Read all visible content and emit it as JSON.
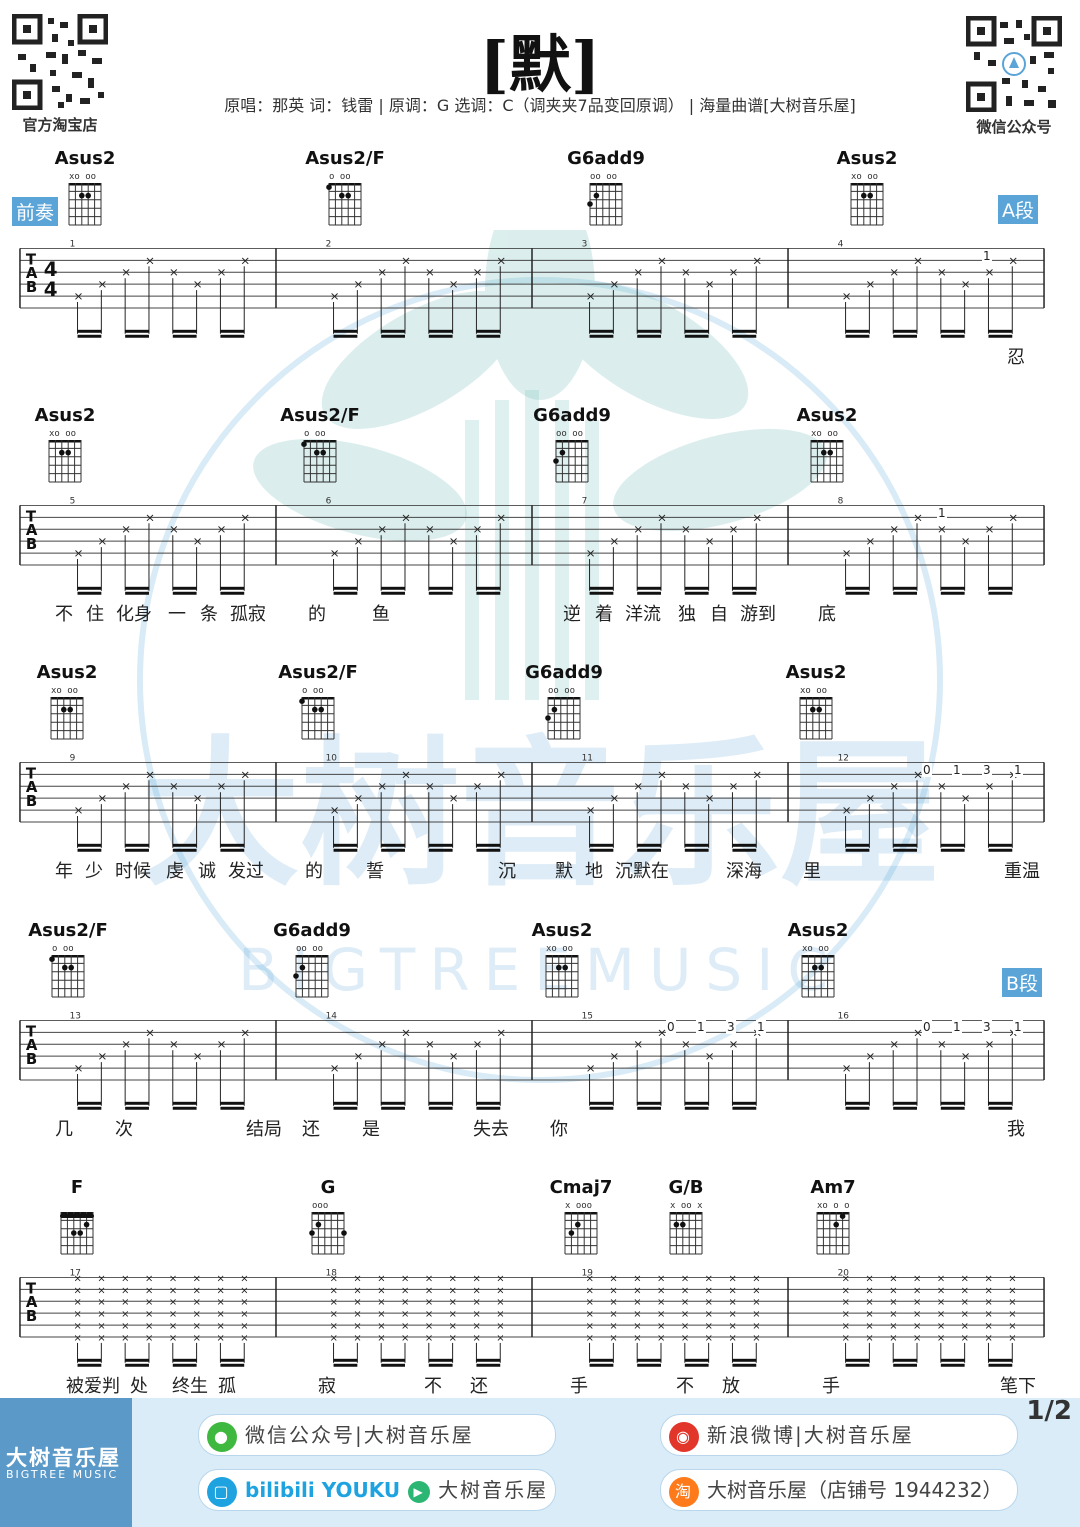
{
  "header": {
    "title": "[默]",
    "subtitle": "原唱：那英 词：钱雷 | 原调：G 选调：C（调夹夹7品变回原调） | 海量曲谱[大树音乐屋]",
    "qr_left_caption": "官方淘宝店",
    "qr_right_caption": "微信公众号"
  },
  "watermark": {
    "text_cn": "大树音乐屋",
    "text_en": "BIGTREEMUSIC"
  },
  "sections": {
    "intro": "前奏",
    "a": "A段",
    "b": "B段"
  },
  "time_signature": "4/4",
  "rows": [
    {
      "chords": [
        {
          "name": "Asus2",
          "marks": "xo  oo"
        },
        {
          "name": "Asus2/F",
          "marks": "  o oo"
        },
        {
          "name": "G6add9",
          "marks": "  oo oo"
        },
        {
          "name": "Asus2",
          "marks": "xo  oo"
        }
      ],
      "measures": [
        "1",
        "2",
        "3",
        "4"
      ],
      "lyrics": [
        "忍"
      ]
    },
    {
      "chords": [
        {
          "name": "Asus2",
          "marks": "xo  oo"
        },
        {
          "name": "Asus2/F",
          "marks": "  o oo"
        },
        {
          "name": "G6add9",
          "marks": "  oo oo"
        },
        {
          "name": "Asus2",
          "marks": "xo  oo"
        }
      ],
      "measures": [
        "5",
        "6",
        "7",
        "8"
      ],
      "lyrics": [
        "不",
        "住",
        "化身",
        "一",
        "条",
        "孤寂",
        "的",
        "鱼",
        "逆",
        "着",
        "洋流",
        "独",
        "自",
        "游到",
        "底"
      ]
    },
    {
      "chords": [
        {
          "name": "Asus2",
          "marks": "xo  oo"
        },
        {
          "name": "Asus2/F",
          "marks": "  o oo"
        },
        {
          "name": "G6add9",
          "marks": "  oo oo"
        },
        {
          "name": "Asus2",
          "marks": "xo  oo"
        }
      ],
      "measures": [
        "9",
        "10",
        "11",
        "12"
      ],
      "lyrics": [
        "年",
        "少",
        "时候",
        "虔",
        "诚",
        "发过",
        "的",
        "誓",
        "沉",
        "默",
        "地",
        "沉默在",
        "深海",
        "里",
        "重温"
      ]
    },
    {
      "chords": [
        {
          "name": "Asus2/F",
          "marks": "  o oo"
        },
        {
          "name": "G6add9",
          "marks": "  oo oo"
        },
        {
          "name": "Asus2",
          "marks": "xo  oo"
        },
        {
          "name": "Asus2",
          "marks": "xo  oo"
        }
      ],
      "measures": [
        "13",
        "14",
        "15",
        "16"
      ],
      "lyrics": [
        "几",
        "次",
        "结局",
        "还",
        "是",
        "失去",
        "你",
        "我"
      ]
    },
    {
      "chords": [
        {
          "name": "F",
          "marks": ""
        },
        {
          "name": "G",
          "marks": "ooo"
        },
        {
          "name": "Cmaj7",
          "marks": "x  ooo"
        },
        {
          "name": "G/B",
          "marks": "x oo x"
        },
        {
          "name": "Am7",
          "marks": "xo o o"
        }
      ],
      "measures": [
        "17",
        "18",
        "19",
        "20"
      ],
      "lyrics": [
        "被爱判",
        "处",
        "终生",
        "孤",
        "寂",
        "不",
        "还",
        "手",
        "不",
        "放",
        "手",
        "笔下"
      ]
    }
  ],
  "tab_numbers": {
    "row1": [
      "1"
    ],
    "row2": [
      "1"
    ],
    "row3": [
      "0",
      "1",
      "3",
      "1"
    ],
    "row4": [
      "0",
      "1",
      "3",
      "1",
      "0",
      "1",
      "3",
      "1"
    ]
  },
  "footer": {
    "brand_cn": "大树音乐屋",
    "brand_en": "BIGTREE MUSIC",
    "wechat": "微信公众号|大树音乐屋",
    "weibo": "新浪微博|大树音乐屋",
    "video": "大树音乐屋",
    "video_brands": "bilibili YOUKU",
    "shop": "大树音乐屋（店铺号 1944232）",
    "page": "1/2"
  },
  "colors": {
    "accent": "#5aa4d8",
    "footer_bg": "#d9ecf8",
    "watermark": "#8fc7e6"
  }
}
